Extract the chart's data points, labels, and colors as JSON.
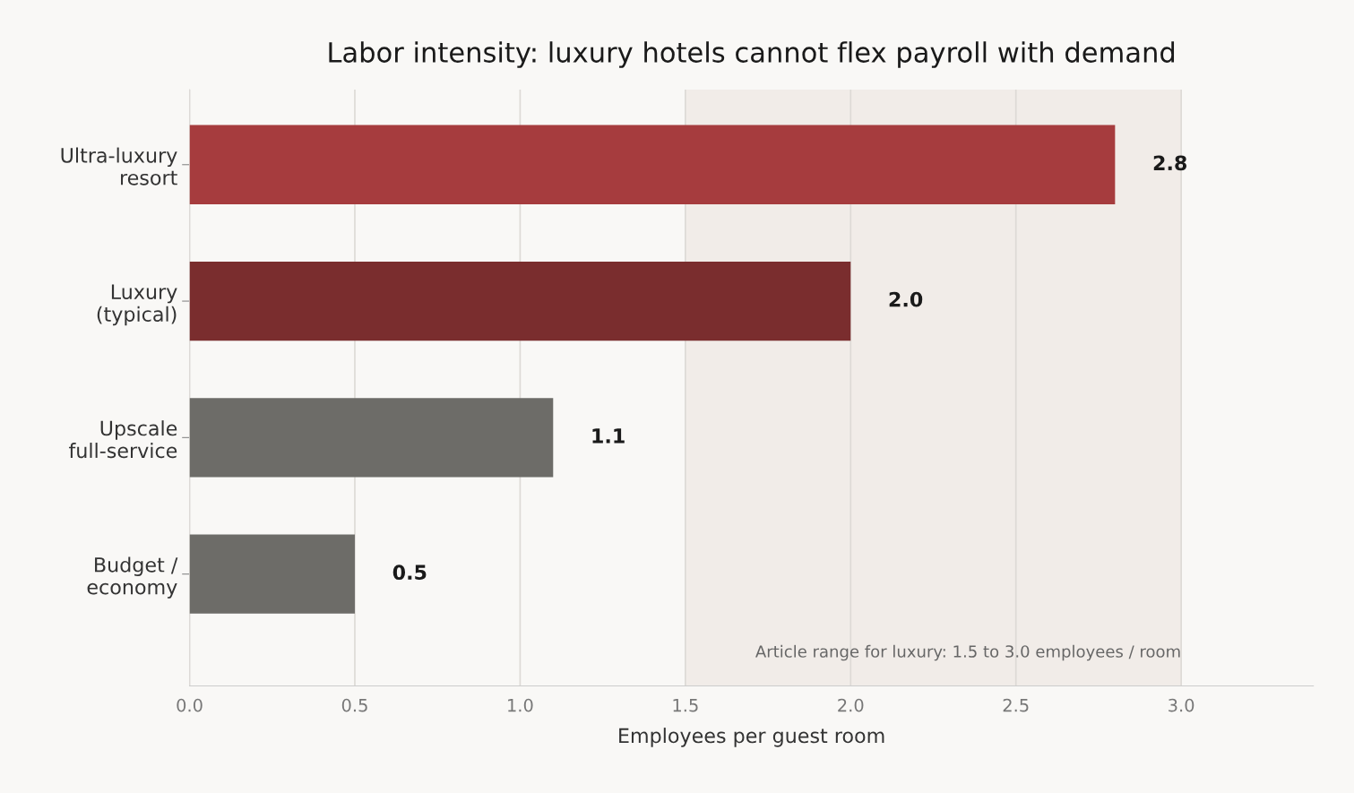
{
  "chart_data": {
    "type": "bar",
    "orientation": "horizontal",
    "title": "Labor intensity: luxury hotels cannot flex payroll with demand",
    "xlabel": "Employees per guest room",
    "categories": [
      "Ultra-luxury\nresort",
      "Luxury\n(typical)",
      "Upscale\nfull-service",
      "Budget /\neconomy"
    ],
    "values": [
      2.8,
      2.0,
      1.1,
      0.5
    ],
    "colors": [
      "#a63c3e",
      "#7a2d2e",
      "#6d6c68",
      "#6d6c68"
    ],
    "value_labels": [
      "2.8",
      "2.0",
      "1.1",
      "0.5"
    ],
    "xlim": [
      0,
      3.4
    ],
    "xticks": [
      {
        "value": 0,
        "label": "0.0"
      },
      {
        "value": 0.5,
        "label": "0.5"
      },
      {
        "value": 1,
        "label": "1.0"
      },
      {
        "value": 1.5,
        "label": "1.5"
      },
      {
        "value": 2,
        "label": "2.0"
      },
      {
        "value": 2.5,
        "label": "2.5"
      },
      {
        "value": 3,
        "label": "3.0"
      }
    ],
    "bands": [
      {
        "axis": "x",
        "from": 1.5,
        "to": 3.0,
        "label": "Article range for luxury: 1.5 to 3.0 employees / room",
        "color": "#f1ece8"
      }
    ],
    "grid": "x"
  }
}
